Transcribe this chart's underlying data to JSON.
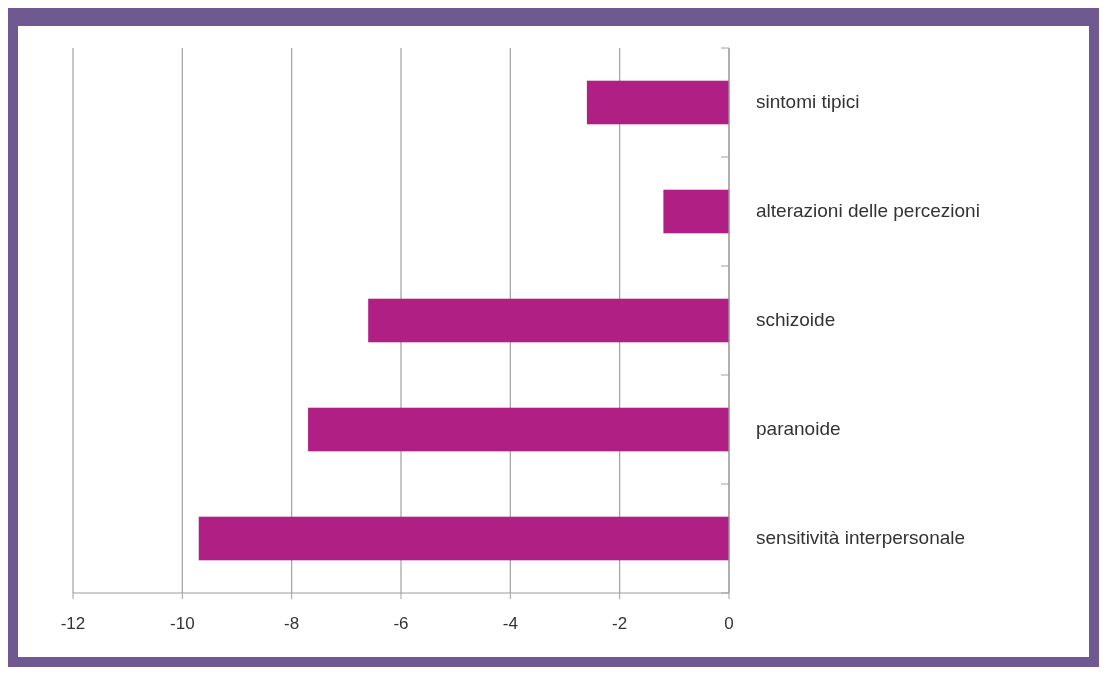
{
  "chart_data": {
    "type": "bar",
    "orientation": "horizontal",
    "categories": [
      "sintomi tipici",
      "alterazioni delle percezioni",
      "schizoide",
      "paranoide",
      "sensitività interpersonale"
    ],
    "values": [
      -2.6,
      -1.2,
      -6.6,
      -7.7,
      -9.7
    ],
    "color": "#b01f84",
    "xlim": [
      -12,
      0
    ],
    "xticks": [
      -12,
      -10,
      -8,
      -6,
      -4,
      -2,
      0
    ],
    "grid": "x"
  }
}
